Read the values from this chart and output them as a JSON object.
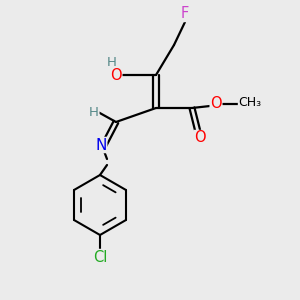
{
  "bg_color": "#ebebeb",
  "bond_color": "#000000",
  "atom_colors": {
    "F": "#cc44cc",
    "O": "#ff0000",
    "N": "#0000ee",
    "Cl": "#22aa22",
    "H": "#558888",
    "C": "#000000"
  },
  "figsize": [
    3.0,
    3.0
  ],
  "dpi": 100
}
